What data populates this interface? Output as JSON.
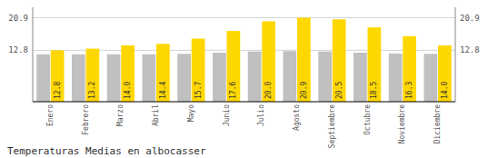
{
  "chart_data": {
    "type": "bar",
    "title": "Temperaturas Medias en albocasser",
    "categories": [
      "Enero",
      "Febrero",
      "Marzo",
      "Abril",
      "Mayo",
      "Junio",
      "Julio",
      "Agosto",
      "Septiembre",
      "Octubre",
      "Noviembre",
      "Diciembre"
    ],
    "series": [
      {
        "color": "#C0C0C0",
        "values": [
          11.8,
          11.8,
          11.8,
          11.8,
          11.9,
          12.2,
          12.5,
          12.6,
          12.5,
          12.2,
          12.0,
          11.9
        ]
      },
      {
        "color": "#FFD700",
        "values": [
          12.8,
          13.2,
          14.0,
          14.4,
          15.7,
          17.6,
          20.0,
          20.9,
          20.5,
          18.5,
          16.3,
          14.0
        ],
        "value_labels": [
          "12.8",
          "13.2",
          "14.0",
          "14.4",
          "15.7",
          "17.6",
          "20.0",
          "20.9",
          "20.5",
          "18.5",
          "16.3",
          "14.0"
        ],
        "data_labels": true
      }
    ],
    "ylim": [
      0,
      23.5
    ],
    "yticks": [
      12.8,
      20.9
    ],
    "y2lim": [
      0,
      23.5
    ],
    "y2ticks": [
      12.8,
      20.9
    ],
    "grid": true
  }
}
